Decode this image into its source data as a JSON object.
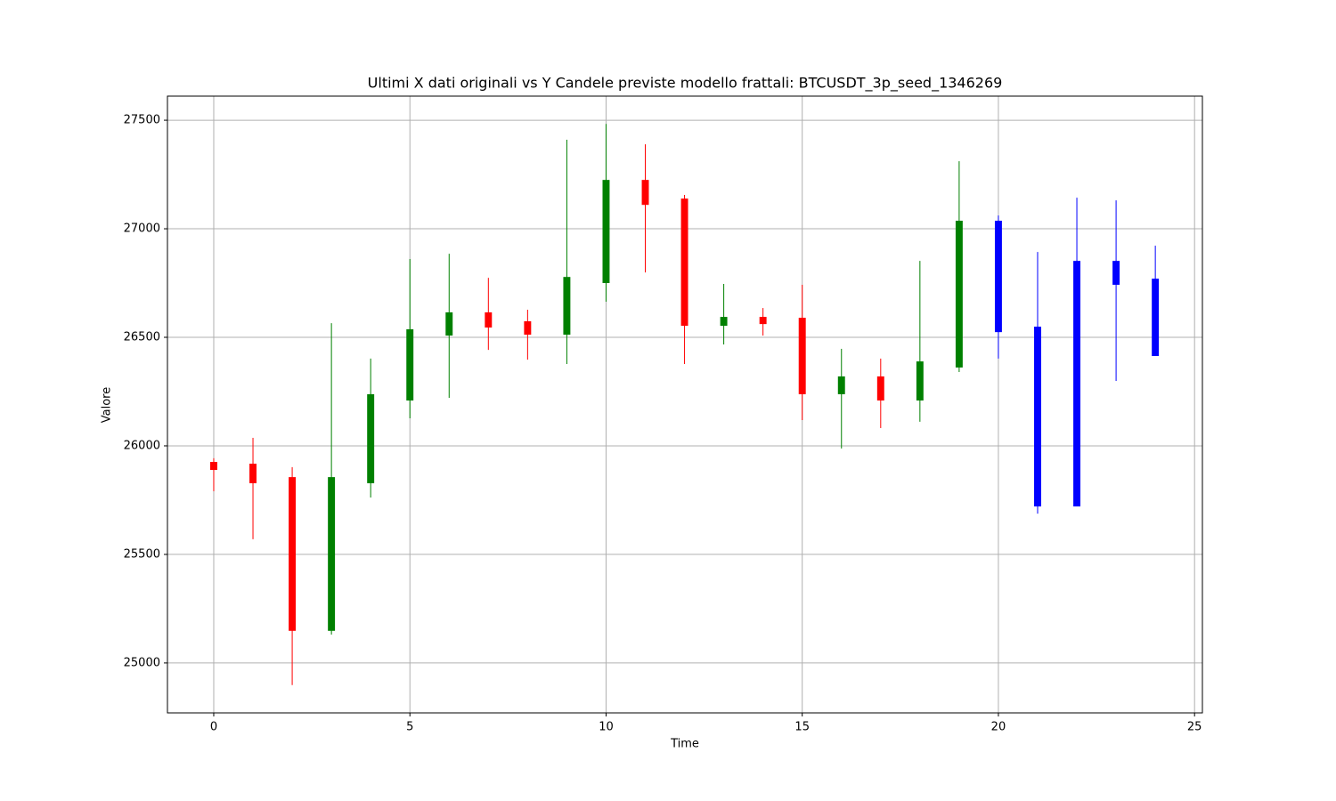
{
  "chart_data": {
    "type": "candlestick",
    "title": "Ultimi X dati originali vs Y Candele previste modello frattali: BTCUSDT_3p_seed_1346269",
    "x_label": "Time",
    "y_label": "Valore",
    "xlim": [
      -1.18,
      25.2
    ],
    "xticks": [
      0,
      5,
      10,
      15,
      20,
      25
    ],
    "ylim": [
      24770,
      27611
    ],
    "yticks": [
      25000,
      25500,
      26000,
      26500,
      27000,
      27500
    ],
    "grid": true,
    "candles": [
      {
        "x": 0,
        "open": 25926,
        "high": 25943,
        "low": 25791,
        "close": 25889,
        "color": "#ff0000"
      },
      {
        "x": 1,
        "open": 25918,
        "high": 26037,
        "low": 25570,
        "close": 25828,
        "color": "#ff0000"
      },
      {
        "x": 2,
        "open": 25856,
        "high": 25902,
        "low": 24898,
        "close": 25148,
        "color": "#ff0000"
      },
      {
        "x": 3,
        "open": 25148,
        "high": 26565,
        "low": 25131,
        "close": 25856,
        "color": "#008000"
      },
      {
        "x": 4,
        "open": 25828,
        "high": 26402,
        "low": 25762,
        "close": 26238,
        "color": "#008000"
      },
      {
        "x": 5,
        "open": 26209,
        "high": 26861,
        "low": 26127,
        "close": 26537,
        "color": "#008000"
      },
      {
        "x": 6,
        "open": 26508,
        "high": 26885,
        "low": 26221,
        "close": 26615,
        "color": "#008000"
      },
      {
        "x": 7,
        "open": 26615,
        "high": 26774,
        "low": 26442,
        "close": 26545,
        "color": "#ff0000"
      },
      {
        "x": 8,
        "open": 26574,
        "high": 26627,
        "low": 26397,
        "close": 26512,
        "color": "#ff0000"
      },
      {
        "x": 9,
        "open": 26512,
        "high": 27410,
        "low": 26377,
        "close": 26778,
        "color": "#008000"
      },
      {
        "x": 10,
        "open": 26750,
        "high": 27483,
        "low": 26664,
        "close": 27225,
        "color": "#008000"
      },
      {
        "x": 11,
        "open": 27225,
        "high": 27389,
        "low": 26799,
        "close": 27110,
        "color": "#ff0000"
      },
      {
        "x": 12,
        "open": 27139,
        "high": 27156,
        "low": 26377,
        "close": 26553,
        "color": "#ff0000"
      },
      {
        "x": 13,
        "open": 26553,
        "high": 26746,
        "low": 26467,
        "close": 26594,
        "color": "#008000"
      },
      {
        "x": 14,
        "open": 26594,
        "high": 26635,
        "low": 26508,
        "close": 26561,
        "color": "#ff0000"
      },
      {
        "x": 15,
        "open": 26590,
        "high": 26742,
        "low": 26119,
        "close": 26238,
        "color": "#ff0000"
      },
      {
        "x": 16,
        "open": 26238,
        "high": 26447,
        "low": 25988,
        "close": 26320,
        "color": "#008000"
      },
      {
        "x": 17,
        "open": 26320,
        "high": 26402,
        "low": 26082,
        "close": 26209,
        "color": "#ff0000"
      },
      {
        "x": 18,
        "open": 26209,
        "high": 26852,
        "low": 26111,
        "close": 26389,
        "color": "#008000"
      },
      {
        "x": 19,
        "open": 26361,
        "high": 27311,
        "low": 26340,
        "close": 27037,
        "color": "#008000"
      },
      {
        "x": 20,
        "open": 27037,
        "high": 27061,
        "low": 26402,
        "close": 26524,
        "color": "#0000ff"
      },
      {
        "x": 21,
        "open": 26549,
        "high": 26893,
        "low": 25688,
        "close": 25721,
        "color": "#0000ff"
      },
      {
        "x": 22,
        "open": 26852,
        "high": 27143,
        "low": 25721,
        "close": 25721,
        "color": "#0000ff"
      },
      {
        "x": 23,
        "open": 26852,
        "high": 27131,
        "low": 26299,
        "close": 26742,
        "color": "#0000ff"
      },
      {
        "x": 24,
        "open": 26770,
        "high": 26922,
        "low": 26414,
        "close": 26414,
        "color": "#0000ff"
      }
    ]
  }
}
